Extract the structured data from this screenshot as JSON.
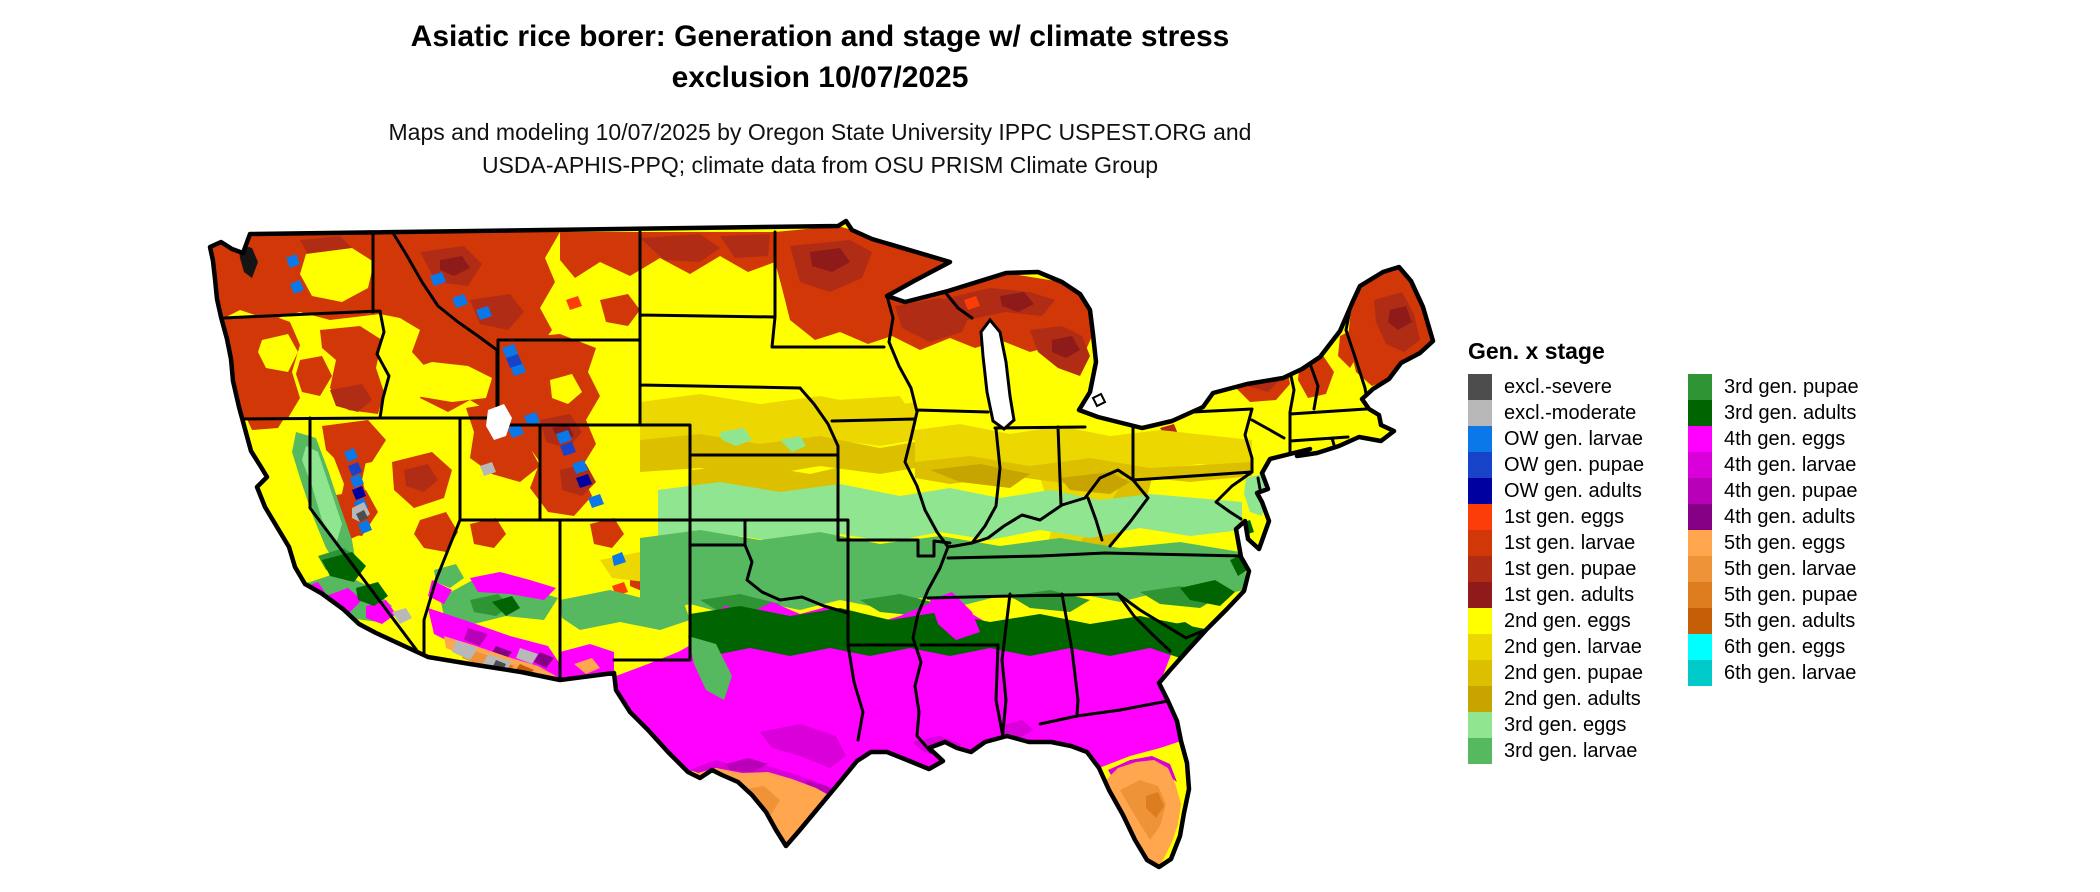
{
  "title": {
    "line1": "Asiatic rice borer: Generation and stage w/ climate stress",
    "line2": "exclusion 10/07/2025"
  },
  "subtitle": {
    "line1": "Maps and modeling 10/07/2025 by Oregon State University IPPC USPEST.ORG and",
    "line2": "USDA-APHIS-PPQ; climate data from OSU PRISM Climate Group"
  },
  "legend": {
    "title": "Gen. x stage",
    "columns": [
      [
        {
          "key": "excl_severe",
          "label": "excl.-severe"
        },
        {
          "key": "excl_moderate",
          "label": "excl.-moderate"
        },
        {
          "key": "ow_larvae",
          "label": "OW gen. larvae"
        },
        {
          "key": "ow_pupae",
          "label": "OW gen. pupae"
        },
        {
          "key": "ow_adults",
          "label": "OW gen. adults"
        },
        {
          "key": "g1_eggs",
          "label": "1st gen. eggs"
        },
        {
          "key": "g1_larvae",
          "label": "1st gen. larvae"
        },
        {
          "key": "g1_pupae",
          "label": "1st gen. pupae"
        },
        {
          "key": "g1_adults",
          "label": "1st gen. adults"
        },
        {
          "key": "g2_eggs",
          "label": "2nd gen. eggs"
        },
        {
          "key": "g2_larvae",
          "label": "2nd gen. larvae"
        },
        {
          "key": "g2_pupae",
          "label": "2nd gen. pupae"
        },
        {
          "key": "g2_adults",
          "label": "2nd gen. adults"
        },
        {
          "key": "g3_eggs",
          "label": "3rd gen. eggs"
        },
        {
          "key": "g3_larvae",
          "label": "3rd gen. larvae"
        }
      ],
      [
        {
          "key": "g3_pupae",
          "label": "3rd gen. pupae"
        },
        {
          "key": "g3_adults",
          "label": "3rd gen. adults"
        },
        {
          "key": "g4_eggs",
          "label": "4th gen. eggs"
        },
        {
          "key": "g4_larvae",
          "label": "4th gen. larvae"
        },
        {
          "key": "g4_pupae",
          "label": "4th gen. pupae"
        },
        {
          "key": "g4_adults",
          "label": "4th gen. adults"
        },
        {
          "key": "g5_eggs",
          "label": "5th gen. eggs"
        },
        {
          "key": "g5_larvae",
          "label": "5th gen. larvae"
        },
        {
          "key": "g5_pupae",
          "label": "5th gen. pupae"
        },
        {
          "key": "g5_adults",
          "label": "5th gen. adults"
        },
        {
          "key": "g6_eggs",
          "label": "6th gen. eggs"
        },
        {
          "key": "g6_larvae",
          "label": "6th gen. larvae"
        }
      ]
    ]
  },
  "palette": {
    "excl_severe": "#4d4d4d",
    "excl_moderate": "#b8b8b8",
    "ow_larvae": "#0a78e8",
    "ow_pupae": "#1843c8",
    "ow_adults": "#0000a0",
    "g1_eggs": "#fd3d08",
    "g1_larvae": "#d23708",
    "g1_pupae": "#b02c14",
    "g1_adults": "#8e1a1a",
    "g2_eggs": "#ffff00",
    "g2_larvae": "#ecd800",
    "g2_pupae": "#dcc000",
    "g2_adults": "#c7a400",
    "g3_eggs": "#90e690",
    "g3_larvae": "#57b95f",
    "g3_pupae": "#2f9434",
    "g3_adults": "#006400",
    "g4_eggs": "#ff00ff",
    "g4_larvae": "#d900d9",
    "g4_pupae": "#b700b7",
    "g4_adults": "#850085",
    "g5_eggs": "#ffa64f",
    "g5_larvae": "#ef9339",
    "g5_pupae": "#dd7d20",
    "g5_adults": "#c45f08",
    "g6_eggs": "#00ffff",
    "g6_larvae": "#00c9c9"
  }
}
